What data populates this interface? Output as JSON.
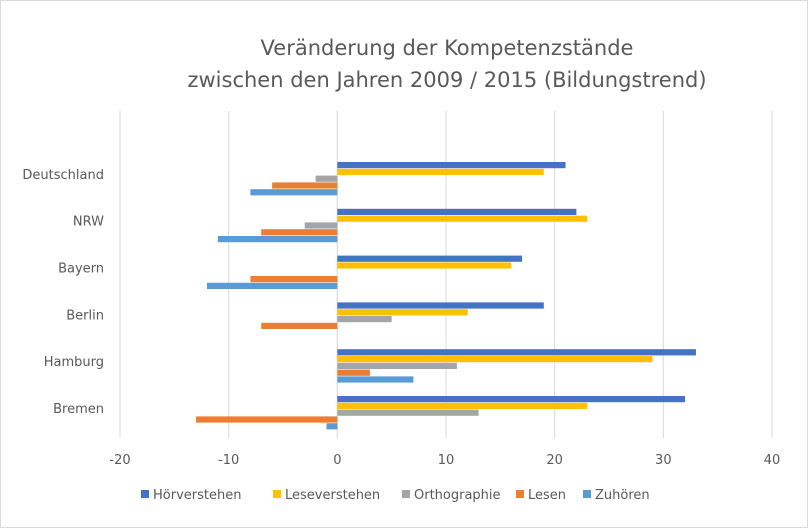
{
  "chart_data": {
    "type": "bar",
    "orientation": "horizontal",
    "title": [
      "Veränderung der Kompetenzstände",
      "zwischen den Jahren 2009 / 2015 (Bildungstrend)"
    ],
    "categories": [
      "Deutschland",
      "NRW",
      "Bayern",
      "Berlin",
      "Hamburg",
      "Bremen"
    ],
    "series": [
      {
        "name": "Hörverstehen",
        "color": "#4472C4",
        "values": [
          21,
          22,
          17,
          19,
          33,
          32
        ]
      },
      {
        "name": "Leseverstehen",
        "color": "#FFC000",
        "values": [
          19,
          23,
          16,
          12,
          29,
          23
        ]
      },
      {
        "name": "Orthographie",
        "color": "#A5A5A5",
        "values": [
          -2,
          -3,
          0,
          5,
          11,
          13
        ]
      },
      {
        "name": "Lesen",
        "color": "#ED7D31",
        "values": [
          -6,
          -7,
          -8,
          -7,
          3,
          -13
        ]
      },
      {
        "name": "Zuhören",
        "color": "#5B9BD5",
        "values": [
          -8,
          -11,
          -12,
          0,
          7,
          -1
        ]
      }
    ],
    "xlim": [
      -20,
      40
    ],
    "xticks": [
      -20,
      -10,
      0,
      10,
      20,
      30,
      40
    ],
    "grid": true,
    "legend": "bottom",
    "xlabel": "",
    "ylabel": ""
  }
}
